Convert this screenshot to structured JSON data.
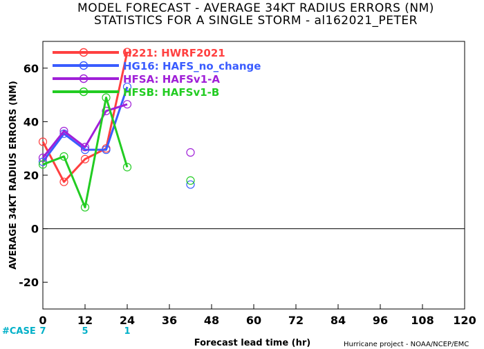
{
  "title_line1": "MODEL FORECAST - AVERAGE 34KT RADIUS ERRORS (NM)",
  "title_line2": "STATISTICS FOR A SINGLE STORM - al162021_PETER",
  "credit": "Hurricane project - NOAA/NCEP/EMC",
  "case_label": "#CASE",
  "cases": [
    {
      "x": 0,
      "count": "7"
    },
    {
      "x": 12,
      "count": "5"
    },
    {
      "x": 24,
      "count": "1"
    }
  ],
  "chart_data": {
    "type": "line",
    "xlabel": "Forecast lead time (hr)",
    "ylabel": "AVERAGE 34KT RADIUS ERRORS (NM)",
    "xlim": [
      0,
      120
    ],
    "ylim": [
      -30,
      70
    ],
    "xticks": [
      0,
      12,
      24,
      36,
      48,
      60,
      72,
      84,
      96,
      108,
      120
    ],
    "yticks": [
      -20,
      0,
      20,
      40,
      60
    ],
    "legend_position": "top-left",
    "series": [
      {
        "name": "H221: HWRF2021",
        "color": "#ff4040",
        "x": [
          0,
          6,
          12,
          18,
          24
        ],
        "y": [
          32.5,
          17.5,
          26,
          30,
          66
        ],
        "isolated": []
      },
      {
        "name": "HG16: HAFS_no_change",
        "color": "#3a5cff",
        "x": [
          0,
          6,
          12,
          18,
          24
        ],
        "y": [
          25,
          35.5,
          29.5,
          29.5,
          53
        ],
        "isolated": [
          {
            "x": 42,
            "y": 16.5
          }
        ]
      },
      {
        "name": "HFSA: HAFSv1-A",
        "color": "#a020d8",
        "x": [
          0,
          6,
          12,
          18,
          24
        ],
        "y": [
          26.5,
          36.5,
          30.5,
          44,
          46.5
        ],
        "isolated": [
          {
            "x": 42,
            "y": 28.5
          }
        ]
      },
      {
        "name": "HFSB: HAFSv1-B",
        "color": "#22cc22",
        "x": [
          0,
          6,
          12,
          18,
          24
        ],
        "y": [
          24,
          27,
          8,
          49,
          23
        ],
        "isolated": [
          {
            "x": 42,
            "y": 18
          }
        ]
      }
    ]
  }
}
